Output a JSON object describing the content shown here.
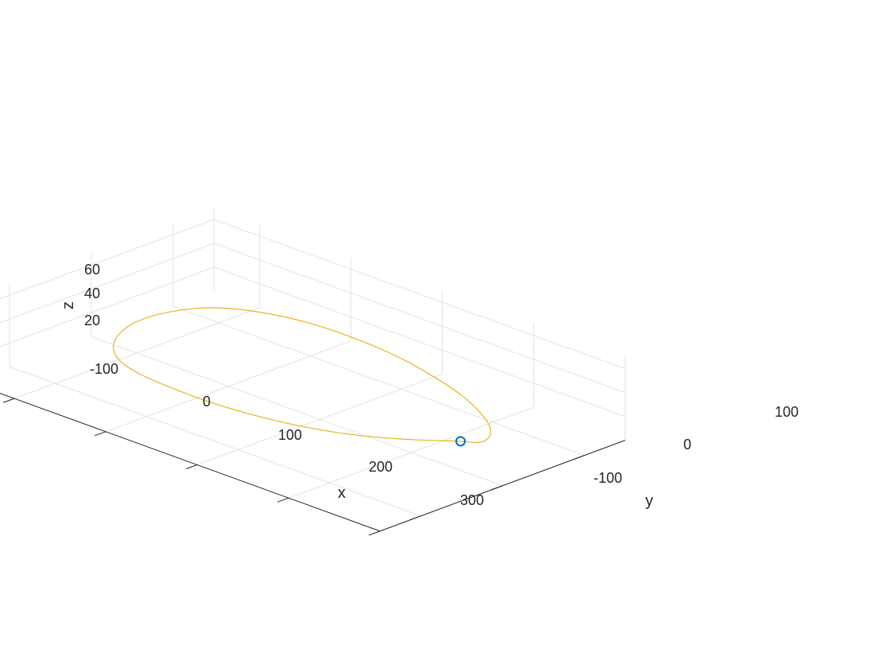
{
  "chart_data": {
    "type": "line3d",
    "title": "",
    "xlabel": "x",
    "ylabel": "y",
    "zlabel": "z",
    "xlim": [
      -150,
      300
    ],
    "ylim": [
      -150,
      150
    ],
    "zlim": [
      0,
      70
    ],
    "xticks": [
      -100,
      0,
      100,
      200,
      300
    ],
    "yticks": [
      -100,
      0,
      100
    ],
    "zticks": [
      20,
      40,
      60
    ],
    "xtick_labels": [
      "-100",
      "0",
      "100",
      "200",
      "300"
    ],
    "ytick_labels": [
      "-100",
      "0",
      "100"
    ],
    "ztick_labels": [
      "20",
      "40",
      "60"
    ],
    "grid": true,
    "series": [
      {
        "style": "line",
        "color": "#EDB120",
        "x": [
          265.8,
          232.0,
          195.0,
          155.0,
          112.0,
          69.0,
          28.0,
          -7.0,
          -35.0,
          -56.0,
          -70.0,
          -79.0,
          -78.0,
          -65.0,
          -38.0,
          0.0,
          45.0,
          93.0,
          141.0,
          187.0,
          226.0,
          256.0,
          273.0,
          279.0,
          277.0,
          265.8
        ],
        "y": [
          -13.2,
          -37.0,
          -57.0,
          -73.0,
          -85.0,
          -93.0,
          -97.0,
          -98.0,
          -93.0,
          -78.0,
          -55.0,
          -23.0,
          15.0,
          52.0,
          80.0,
          98.0,
          105.0,
          103.0,
          92.0,
          75.0,
          54.0,
          33.0,
          15.0,
          2.0,
          -6.0,
          -13.2
        ],
        "z": [
          31.1,
          29.2,
          27.3,
          26.6,
          26.9,
          28.0,
          30.0,
          32.4,
          34.8,
          37.0,
          38.4,
          38.3,
          36.8,
          34.6,
          31.3,
          28.3,
          25.8,
          24.5,
          24.5,
          25.9,
          28.0,
          30.0,
          31.3,
          31.5,
          31.3,
          31.1
        ]
      },
      {
        "style": "marker-circle",
        "color": "#0072BD",
        "x": [
          265.8
        ],
        "y": [
          -13.2
        ],
        "z": [
          31.1
        ]
      }
    ]
  }
}
